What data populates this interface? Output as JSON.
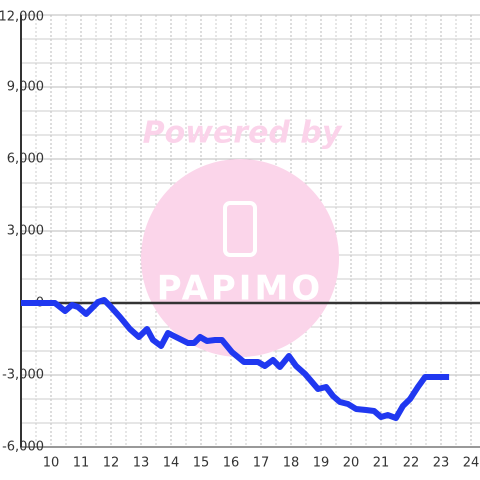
{
  "chart_data": {
    "type": "line",
    "watermark": {
      "text": "Powered by",
      "logo": "PAPIMO"
    },
    "x": [
      9,
      10.13,
      10.47,
      10.7,
      10.9,
      11.17,
      11.37,
      11.57,
      11.77,
      11.97,
      12.3,
      12.63,
      12.93,
      13.2,
      13.4,
      13.67,
      13.9,
      14.23,
      14.57,
      14.77,
      14.97,
      15.2,
      15.47,
      15.7,
      16.03,
      16.43,
      16.9,
      17.13,
      17.4,
      17.63,
      17.93,
      18.17,
      18.47,
      18.7,
      18.9,
      19.17,
      19.4,
      19.63,
      19.9,
      20.17,
      20.5,
      20.77,
      21.0,
      21.23,
      21.5,
      21.73,
      21.97,
      22.23,
      22.47,
      23.27
    ],
    "series": [
      {
        "color": "#2038f0",
        "values": [
          0,
          0,
          -333,
          -83,
          -167,
          -458,
          -208,
          42,
          125,
          -125,
          -583,
          -1083,
          -1417,
          -1083,
          -1542,
          -1792,
          -1250,
          -1458,
          -1667,
          -1667,
          -1417,
          -1583,
          -1542,
          -1542,
          -2042,
          -2458,
          -2458,
          -2625,
          -2375,
          -2667,
          -2208,
          -2625,
          -2958,
          -3292,
          -3583,
          -3500,
          -3875,
          -4125,
          -4208,
          -4417,
          -4458,
          -4500,
          -4750,
          -4667,
          -4792,
          -4292,
          -4000,
          -3500,
          -3083,
          -3083
        ]
      }
    ],
    "xlim": [
      9,
      24.3
    ],
    "xticks": [
      10,
      11,
      12,
      13,
      14,
      15,
      16,
      17,
      18,
      19,
      20,
      21,
      22,
      23,
      24
    ],
    "x_minor_ticks": [
      9.5,
      10.5,
      11.5,
      12.5,
      13.5,
      14.5,
      15.5,
      16.5,
      17.5,
      18.5,
      19.5,
      20.5,
      21.5,
      22.5,
      23.5
    ],
    "ylim": [
      -6000,
      12000
    ],
    "yticks": [
      {
        "value": -6000,
        "label": "-6,000"
      },
      {
        "value": -3000,
        "label": "-3,000"
      },
      0,
      {
        "value": 3000,
        "label": "3,000"
      },
      {
        "value": 6000,
        "label": "6,000"
      },
      {
        "value": 9000,
        "label": "9,000"
      },
      {
        "value": 12000,
        "label": "12,000"
      }
    ],
    "y_minor_ticks": [
      -5000,
      -4000,
      -2000,
      -1000,
      1000,
      2000,
      4000,
      5000,
      7000,
      8000,
      10000,
      11000
    ],
    "grid": true
  }
}
